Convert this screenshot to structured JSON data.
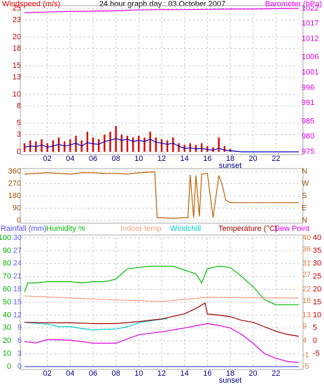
{
  "chart_data": [
    {
      "type": "combo",
      "title": "24 hour graph day : 03 October 2007",
      "xlim": [
        0,
        24
      ],
      "xticks": [
        {
          "value": 2,
          "label": "02"
        },
        {
          "value": 4,
          "label": "04"
        },
        {
          "value": 6,
          "label": "06"
        },
        {
          "value": 8,
          "label": "08"
        },
        {
          "value": 10,
          "label": "10"
        },
        {
          "value": 12,
          "label": "12"
        },
        {
          "value": 14,
          "label": "14"
        },
        {
          "value": 16,
          "label": "16"
        },
        {
          "value": 18,
          "label": "18"
        },
        {
          "value": 20,
          "label": "20"
        },
        {
          "value": 22,
          "label": "22"
        }
      ],
      "grid": true,
      "axes": [
        {
          "lim": [
            0,
            25
          ],
          "ticks": [
            0,
            3,
            5,
            8,
            10,
            13,
            15,
            18,
            20,
            23,
            25
          ],
          "color": "#c00000"
        },
        {
          "lim": [
            975,
            1022
          ],
          "ticks": [
            975,
            980,
            985,
            991,
            996,
            1001,
            1006,
            1012,
            1017,
            1022
          ],
          "color": "#e000e0"
        }
      ],
      "annotations": [
        {
          "text": "sunset",
          "x": 18
        }
      ],
      "series": [
        {
          "name": "Windspeed (m/s)",
          "kind": "bar",
          "color": "#e00000",
          "axis": 0,
          "x": [
            0,
            0.5,
            1,
            1.5,
            2,
            2.5,
            3,
            3.5,
            4,
            4.5,
            5,
            5.5,
            6,
            6.5,
            7,
            7.5,
            8,
            8.5,
            9,
            9.5,
            10,
            10.5,
            11,
            11.5,
            12,
            12.5,
            13,
            13.5,
            14,
            14.5,
            15,
            15.5,
            16,
            16.5,
            17,
            17.5,
            18
          ],
          "values": [
            1.5,
            2,
            1.8,
            2.2,
            1.5,
            2,
            2.5,
            1.8,
            2.2,
            2.8,
            2,
            3.5,
            2.5,
            2.2,
            3,
            3.5,
            4.5,
            3,
            2.8,
            2.5,
            2.8,
            2.5,
            3.5,
            2.5,
            2.2,
            2,
            2.5,
            1.5,
            1.2,
            1.5,
            1.2,
            1.5,
            1,
            0.8,
            2.5,
            1,
            0.5
          ]
        },
        {
          "kind": "line",
          "color": "#0000c0",
          "axis": 0,
          "x": [
            0,
            0.5,
            1,
            1.5,
            2,
            2.5,
            3,
            3.5,
            4,
            4.5,
            5,
            5.5,
            6,
            6.5,
            7,
            7.5,
            8,
            8.5,
            9,
            9.5,
            10,
            10.5,
            11,
            11.5,
            12,
            12.5,
            13,
            13.5,
            14,
            14.5,
            15,
            15.5,
            16,
            16.5,
            17,
            17.5,
            18,
            19,
            20,
            21,
            22,
            23,
            24
          ],
          "values": [
            0.8,
            1,
            0.9,
            1.2,
            0.8,
            1,
            1.3,
            1,
            1.2,
            1.5,
            1,
            1.6,
            1.4,
            1.3,
            1.8,
            2,
            2.3,
            2,
            2.2,
            1.8,
            2,
            1.8,
            2.2,
            1.7,
            1.5,
            1.3,
            1.5,
            1,
            0.6,
            0.7,
            0.5,
            0.6,
            0.4,
            0.3,
            0.6,
            0.3,
            0.2,
            0,
            0,
            0,
            0,
            0,
            0
          ]
        },
        {
          "name": "Barometer (hPa)",
          "kind": "line",
          "color": "#e000e0",
          "axis": 1,
          "x": [
            0,
            2,
            4,
            6,
            8,
            10,
            12,
            14,
            16,
            18,
            20,
            22,
            24
          ],
          "values": [
            1020.6,
            1020.8,
            1021,
            1021.1,
            1021.2,
            1021.5,
            1021.6,
            1021.6,
            1021.7,
            1021.8,
            1021.8,
            1021.9,
            1022
          ]
        }
      ]
    },
    {
      "type": "line",
      "xlim": [
        0,
        24
      ],
      "grid": true,
      "axes": [
        {
          "lim": [
            0,
            360
          ],
          "ticks": [
            0,
            90,
            180,
            270,
            360
          ],
          "color": "#a05000"
        },
        {
          "lim": [
            0,
            360
          ],
          "ticks": [
            {
              "value": 0,
              "label": "N"
            },
            {
              "value": 90,
              "label": "E"
            },
            {
              "value": 180,
              "label": "S"
            },
            {
              "value": 270,
              "label": "W"
            },
            {
              "value": 360,
              "label": "N"
            }
          ],
          "color": "#a05000"
        }
      ],
      "series": [
        {
          "kind": "line",
          "color": "#c06000",
          "axis": 0,
          "x": [
            0,
            1,
            2,
            3,
            4,
            5,
            6,
            7,
            8,
            9,
            10,
            11,
            11.4,
            11.6,
            12,
            13,
            14,
            14.3,
            14.5,
            14.8,
            15,
            15.3,
            15.5,
            16,
            16.5,
            17,
            17.3,
            17.6,
            18,
            20,
            22,
            24
          ],
          "values": [
            340,
            345,
            350,
            345,
            340,
            350,
            350,
            345,
            345,
            340,
            350,
            355,
            355,
            20,
            20,
            15,
            20,
            20,
            335,
            20,
            330,
            30,
            340,
            345,
            20,
            330,
            260,
            150,
            130,
            130,
            130,
            130
          ]
        }
      ]
    },
    {
      "type": "line",
      "xlim": [
        0,
        24
      ],
      "xticks": [
        {
          "value": 2,
          "label": "02"
        },
        {
          "value": 4,
          "label": "04"
        },
        {
          "value": 6,
          "label": "06"
        },
        {
          "value": 8,
          "label": "08"
        },
        {
          "value": 10,
          "label": "10"
        },
        {
          "value": 12,
          "label": "12"
        },
        {
          "value": 14,
          "label": "14"
        },
        {
          "value": 16,
          "label": "16"
        },
        {
          "value": 18,
          "label": "18"
        },
        {
          "value": 20,
          "label": "20"
        },
        {
          "value": 22,
          "label": "22"
        }
      ],
      "grid": true,
      "axes": [
        {
          "lim": [
            0,
            100
          ],
          "ticks": [
            0,
            10,
            20,
            30,
            40,
            50,
            60,
            70,
            80,
            90,
            100
          ],
          "color": "#00b000"
        },
        {
          "lim": [
            0,
            30
          ],
          "ticks": [
            0,
            3,
            6,
            9,
            12,
            15,
            18,
            21,
            24,
            27,
            30
          ],
          "color": "#6060ff"
        },
        {
          "lim": [
            -5,
            40
          ],
          "ticks": [
            40,
            36,
            31,
            27,
            22,
            18,
            13,
            9,
            4,
            -1,
            -5
          ],
          "color": "#e08040"
        },
        {
          "lim": [
            -10,
            40
          ],
          "ticks": [
            40,
            35,
            30,
            25,
            20,
            15,
            10,
            5,
            0,
            -5
          ],
          "color": "#c00000"
        }
      ],
      "annotations": [
        {
          "text": "sunset",
          "x": 18
        }
      ],
      "series": [
        {
          "name": "Rainfall (mm)",
          "kind": "line",
          "color": "#5050ff",
          "axis": 1,
          "x": [
            0,
            24
          ],
          "values": [
            0,
            0
          ]
        },
        {
          "name": "Humidity %",
          "kind": "line",
          "color": "#00c000",
          "axis": 0,
          "x": [
            0,
            0.3,
            1,
            2,
            3,
            4,
            5,
            6,
            7,
            8,
            8.5,
            9,
            10,
            11,
            12,
            13,
            14,
            15,
            15.5,
            16,
            17,
            18,
            19,
            20,
            21,
            22,
            23,
            24
          ],
          "values": [
            58,
            65,
            65,
            66,
            66,
            66,
            65,
            66,
            66,
            68,
            72,
            76,
            77,
            78,
            78,
            78,
            75,
            72,
            65,
            76,
            78,
            77,
            70,
            62,
            52,
            48,
            48,
            48
          ]
        },
        {
          "name": "Indoor temp",
          "kind": "line",
          "color": "#f0a080",
          "axis": 2,
          "x": [
            0,
            4,
            8,
            12,
            16,
            20,
            24
          ],
          "values": [
            19.7,
            19,
            18.3,
            17.8,
            19.2,
            19.1,
            19
          ]
        },
        {
          "name": "Windchill",
          "kind": "line",
          "color": "#00d0d0",
          "axis": 3,
          "x": [
            0,
            1,
            2,
            3,
            4,
            5,
            6,
            7,
            8,
            9,
            10,
            11,
            12,
            12.5
          ],
          "values": [
            7.2,
            6.8,
            6.5,
            5.5,
            5.6,
            4.8,
            4.2,
            4.5,
            4.6,
            5.5,
            7,
            7.8,
            8.4,
            8.6
          ]
        },
        {
          "name": "Temperature (°C)",
          "kind": "line",
          "color": "#a00000",
          "axis": 3,
          "x": [
            0,
            2,
            4,
            6,
            8,
            10,
            12,
            14,
            15,
            15.8,
            16,
            17,
            18,
            19,
            20,
            21,
            22,
            23,
            24
          ],
          "values": [
            7.2,
            7,
            7,
            6.7,
            6.7,
            7.5,
            8.5,
            10.5,
            12.6,
            14.7,
            10.4,
            10,
            9.4,
            8,
            7.2,
            5.5,
            3.7,
            2.5,
            1.8
          ]
        },
        {
          "name": "Dew Point",
          "kind": "line",
          "color": "#e000e0",
          "axis": 3,
          "x": [
            0,
            1,
            2,
            4,
            6,
            8,
            10,
            12,
            14,
            16,
            17,
            18,
            19,
            20,
            21,
            22,
            23,
            24
          ],
          "values": [
            -0.3,
            -0.8,
            0.5,
            0.3,
            -0.9,
            -0.9,
            2.4,
            3.5,
            5,
            6.7,
            6,
            5,
            2.5,
            -0.9,
            -5,
            -6.8,
            -8,
            -8.4
          ]
        }
      ]
    }
  ]
}
